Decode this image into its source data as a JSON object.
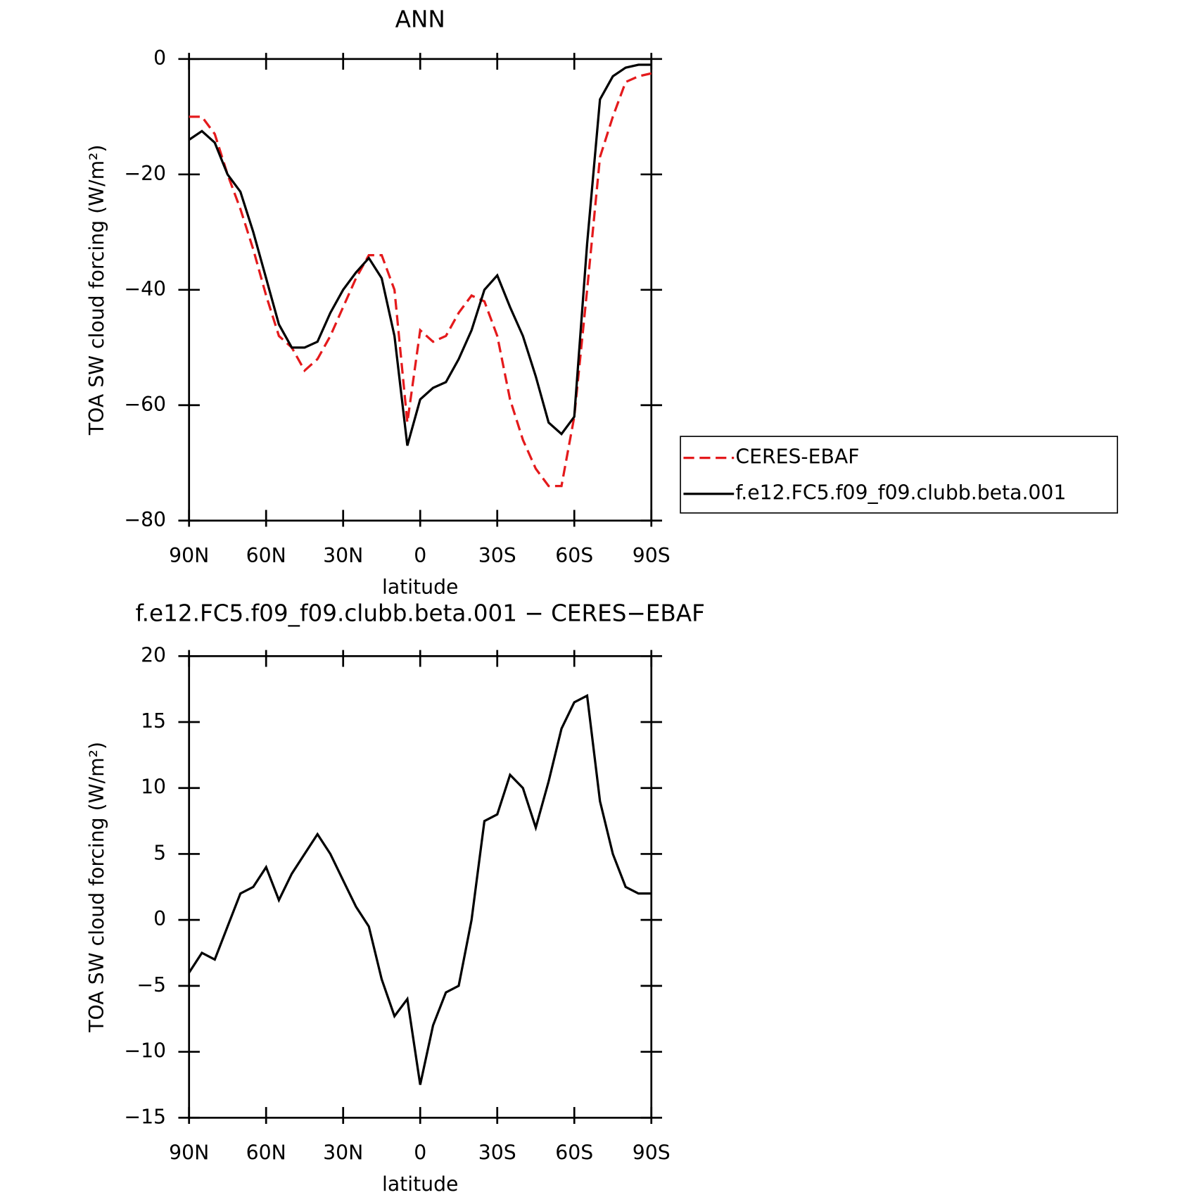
{
  "chart_data": [
    {
      "type": "line",
      "title": "ANN",
      "xlabel": "latitude",
      "ylabel": "TOA SW cloud forcing (W/m²)",
      "x": [
        90,
        85,
        80,
        75,
        70,
        65,
        60,
        55,
        50,
        45,
        40,
        35,
        30,
        25,
        20,
        15,
        10,
        5,
        0,
        -5,
        -10,
        -15,
        -20,
        -25,
        -30,
        -35,
        -40,
        -45,
        -50,
        -55,
        -60,
        -65,
        -70,
        -75,
        -80,
        -85,
        -90
      ],
      "xlim": [
        90,
        -90
      ],
      "xticks": [
        {
          "value": 90,
          "label": "90N"
        },
        {
          "value": 60,
          "label": "60N"
        },
        {
          "value": 30,
          "label": "30N"
        },
        0,
        {
          "value": -30,
          "label": "30S"
        },
        {
          "value": -60,
          "label": "60S"
        },
        {
          "value": -90,
          "label": "90S"
        }
      ],
      "ylim": [
        -80,
        0
      ],
      "yticks": [
        0,
        -20,
        -40,
        -60,
        -80
      ],
      "legend": "right",
      "series": [
        {
          "name": "CERES-EBAF",
          "color": "#e41a1c",
          "style": "dashed",
          "values": [
            -10,
            -10,
            -13,
            -20,
            -26,
            -33,
            -41,
            -48,
            -50,
            -54,
            -52,
            -48,
            -43,
            -38,
            -34,
            -34,
            -40,
            -63,
            -47,
            -49,
            -48,
            -44,
            -41,
            -42,
            -48,
            -59,
            -66,
            -71,
            -74,
            -74,
            -62,
            -40,
            -17,
            -10,
            -4,
            -3,
            -2.5
          ]
        },
        {
          "name": "f.e12.FC5.f09_f09.clubb.beta.001",
          "color": "#000000",
          "style": "solid",
          "values": [
            -14,
            -12.5,
            -14.5,
            -20,
            -23,
            -30,
            -38,
            -46,
            -50,
            -50,
            -49,
            -44,
            -40,
            -37,
            -34.5,
            -38,
            -48,
            -67,
            -59,
            -57,
            -56,
            -52,
            -47,
            -40,
            -37.5,
            -43,
            -48,
            -55,
            -63,
            -65,
            -62,
            -32,
            -7,
            -3,
            -1.5,
            -1,
            -1
          ]
        }
      ]
    },
    {
      "type": "line",
      "title": "f.e12.FC5.f09_f09.clubb.beta.001 − CERES−EBAF",
      "xlabel": "latitude",
      "ylabel": "TOA SW cloud forcing (W/m²)",
      "x": [
        90,
        85,
        80,
        75,
        70,
        65,
        60,
        55,
        50,
        45,
        40,
        35,
        30,
        25,
        20,
        15,
        10,
        5,
        0,
        -5,
        -10,
        -15,
        -20,
        -25,
        -30,
        -35,
        -40,
        -45,
        -50,
        -55,
        -60,
        -65,
        -70,
        -75,
        -80,
        -85,
        -90
      ],
      "xlim": [
        90,
        -90
      ],
      "xticks": [
        {
          "value": 90,
          "label": "90N"
        },
        {
          "value": 60,
          "label": "60N"
        },
        {
          "value": 30,
          "label": "30N"
        },
        0,
        {
          "value": -30,
          "label": "30S"
        },
        {
          "value": -60,
          "label": "60S"
        },
        {
          "value": -90,
          "label": "90S"
        }
      ],
      "ylim": [
        -15,
        20
      ],
      "yticks": [
        20,
        15,
        10,
        5,
        0,
        -5,
        -10,
        -15
      ],
      "series": [
        {
          "color": "#000000",
          "style": "solid",
          "values": [
            -4,
            -2.5,
            -3,
            -0.5,
            2,
            2.5,
            4,
            1.5,
            3.5,
            5,
            6.5,
            5,
            3,
            1,
            -0.5,
            -4.5,
            -7.3,
            -6,
            -12.5,
            -8,
            -5.5,
            -5,
            0,
            7.5,
            8,
            11,
            10,
            7,
            10.5,
            14.5,
            16.5,
            17,
            9,
            5,
            2.5,
            2,
            2
          ]
        }
      ]
    }
  ]
}
